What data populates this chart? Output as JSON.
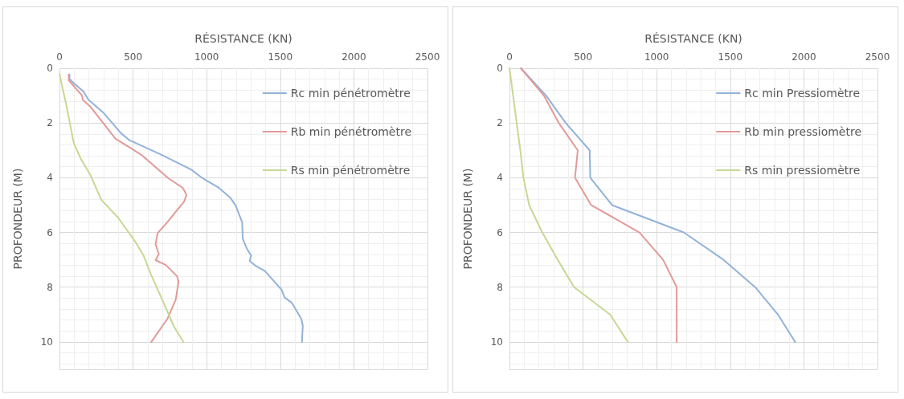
{
  "chart_data": [
    {
      "type": "line",
      "xlabel": "RÉSISTANCE (KN)",
      "ylabel": "PROFONDEUR (M)",
      "xlim": [
        0,
        2500
      ],
      "xticks": [
        0,
        500,
        1000,
        1500,
        2000,
        2500
      ],
      "ylim": [
        11,
        0
      ],
      "yticks": [
        0,
        2,
        4,
        6,
        8,
        10
      ],
      "grid": true,
      "legend": "top right",
      "marker": "none",
      "line_style": "solid",
      "series": [
        {
          "name": "Rc min pénétromètre",
          "color": "#93b2da",
          "x": [
            68,
            68,
            97,
            163,
            197,
            296,
            419,
            476,
            685,
            894,
            970,
            1083,
            1159,
            1197,
            1241,
            1245,
            1273,
            1302,
            1292,
            1330,
            1396,
            1510,
            1529,
            1577,
            1643,
            1653,
            1647
          ],
          "values": [
            0.23,
            0.39,
            0.54,
            0.85,
            1.15,
            1.61,
            2.38,
            2.63,
            3.14,
            3.7,
            4.01,
            4.37,
            4.72,
            5.02,
            5.63,
            6.23,
            6.59,
            6.84,
            7.04,
            7.21,
            7.41,
            8.1,
            8.38,
            8.56,
            9.16,
            9.41,
            10
          ]
        },
        {
          "name": "Rb min pénétromètre",
          "color": "#e29a99",
          "x": [
            63,
            63,
            154,
            158,
            211,
            381,
            505,
            562,
            738,
            837,
            856,
            862,
            847,
            732,
            666,
            653,
            675,
            653,
            723,
            799,
            809,
            790,
            733,
            624
          ],
          "values": [
            0.23,
            0.44,
            1.0,
            1.15,
            1.41,
            2.58,
            2.99,
            3.19,
            4.01,
            4.37,
            4.55,
            4.64,
            4.87,
            5.63,
            6.03,
            6.43,
            6.79,
            7.01,
            7.19,
            7.6,
            7.8,
            8.45,
            9.16,
            10
          ]
        },
        {
          "name": "Rs min pénétromètre",
          "color": "#c6d893",
          "x": [
            0,
            49,
            97,
            144,
            211,
            277,
            287,
            400,
            514,
            571,
            618,
            685,
            780,
            842
          ],
          "values": [
            0.21,
            1.41,
            2.73,
            3.3,
            3.91,
            4.72,
            4.82,
            5.47,
            6.33,
            6.84,
            7.49,
            8.3,
            9.46,
            10
          ]
        }
      ]
    },
    {
      "type": "line",
      "xlabel": "RÉSISTANCE (KN)",
      "ylabel": "PROFONDEUR (M)",
      "xlim": [
        0,
        2500
      ],
      "xticks": [
        0,
        500,
        1000,
        1500,
        2000,
        2500
      ],
      "ylim": [
        11,
        0
      ],
      "yticks": [
        0,
        2,
        4,
        6,
        8,
        10
      ],
      "grid": true,
      "legend": "top right",
      "marker": "none",
      "line_style": "solid",
      "series": [
        {
          "name": "Rc min Pressiomètre",
          "color": "#93b2da",
          "x": [
            78,
            249,
            382,
            545,
            549,
            697,
            1184,
            1455,
            1669,
            1824,
            1941
          ],
          "values": [
            0,
            1,
            2,
            3,
            4,
            5,
            6,
            7,
            8,
            9,
            10
          ]
        },
        {
          "name": "Rb min pressiomètre",
          "color": "#e29a99",
          "x": [
            78,
            234,
            335,
            464,
            445,
            555,
            883,
            1044,
            1136,
            1136,
            1136
          ],
          "values": [
            0,
            1,
            2,
            3,
            4,
            5,
            6,
            7,
            8,
            9,
            10
          ]
        },
        {
          "name": "Rs min pressiomètre",
          "color": "#c6d893",
          "x": [
            0,
            25,
            49,
            74,
            95,
            134,
            223,
            328,
            439,
            684,
            804
          ],
          "values": [
            0,
            1,
            2,
            3,
            4,
            5,
            6,
            7,
            8,
            9,
            10
          ]
        }
      ]
    }
  ]
}
